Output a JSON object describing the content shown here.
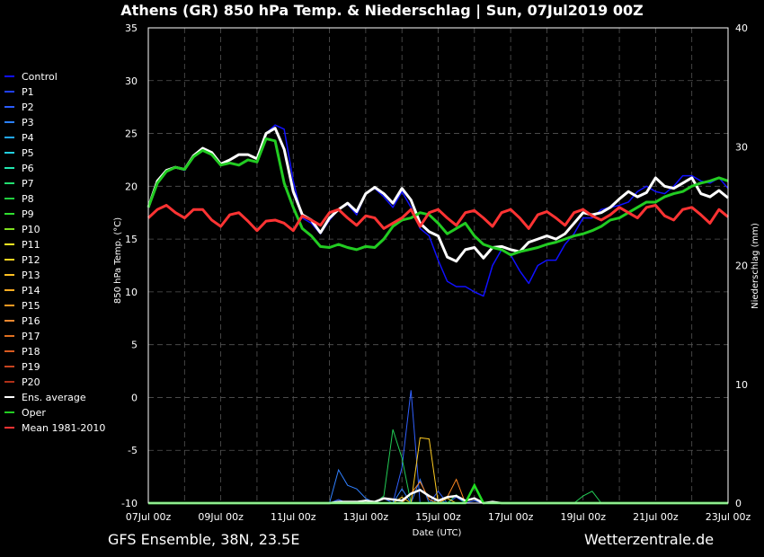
{
  "chart_data": {
    "type": "line",
    "title": "Athens  (GR)  850 hPa Temp. & Niederschlag | Sun, 07Jul2019 00Z",
    "xlabel": "Date (UTC)",
    "ylabel": "850 hPa Temp. (°C)",
    "y2label": "Niederschlag (mm)",
    "ylim": [
      -10,
      35
    ],
    "y2lim": [
      0,
      40
    ],
    "yticks": [
      "35",
      "30",
      "25",
      "20",
      "15",
      "10",
      "5",
      "0",
      "-5",
      "-10"
    ],
    "y2ticks": [
      "40",
      "30",
      "20",
      "10",
      "0"
    ],
    "xticks": [
      "07Jul 00z",
      "09Jul 00z",
      "11Jul 00z",
      "13Jul 00z",
      "15Jul 00z",
      "17Jul 00z",
      "19Jul 00z",
      "21Jul 00z",
      "23Jul 00z"
    ],
    "grid": true,
    "legend_position": "left",
    "x_hours": [
      0,
      6,
      12,
      18,
      24,
      30,
      36,
      42,
      48,
      54,
      60,
      66,
      72,
      78,
      84,
      90,
      96,
      102,
      108,
      114,
      120,
      126,
      132,
      138,
      144,
      150,
      156,
      162,
      168,
      174,
      180,
      186,
      192,
      198,
      204,
      210,
      216,
      222,
      228,
      234,
      240,
      246,
      252,
      258,
      264,
      270,
      276,
      282,
      288,
      294,
      300,
      306,
      312,
      318,
      324,
      330,
      336,
      342,
      348,
      354,
      360,
      366,
      372,
      378,
      384
    ],
    "series": [
      {
        "name": "Control",
        "color": "#1010ff",
        "values": [
          18,
          20.5,
          21.5,
          21.8,
          21.5,
          22.8,
          23.6,
          23.1,
          22.0,
          22.5,
          23.0,
          23.0,
          22.6,
          25.0,
          25.8,
          25.4,
          20.5,
          17.0,
          16.5,
          15.5,
          16.8,
          17.8,
          18.3,
          17.3,
          19.3,
          19.8,
          19.0,
          18.0,
          19.5,
          18.0,
          16.0,
          15.3,
          13.0,
          11.0,
          10.5,
          10.5,
          10.0,
          9.6,
          12.5,
          14.0,
          13.5,
          12.0,
          10.8,
          12.5,
          13.0,
          13.0,
          14.5,
          15.5,
          17.0,
          17.0,
          17.8,
          18.0,
          18.2,
          18.5,
          19.5,
          20.0,
          19.5,
          19.3,
          20.0,
          21.0,
          21.0,
          20.5,
          20.3,
          20.8,
          19.8
        ]
      },
      {
        "name": "Ens. average",
        "color": "#ffffff",
        "values": [
          18,
          20.5,
          21.5,
          21.8,
          21.6,
          22.9,
          23.6,
          23.2,
          22.1,
          22.5,
          23.0,
          23.0,
          22.6,
          25.0,
          25.5,
          23.5,
          19.5,
          17.3,
          16.8,
          15.6,
          17.0,
          17.8,
          18.4,
          17.6,
          19.3,
          19.9,
          19.3,
          18.4,
          19.8,
          18.7,
          16.5,
          15.7,
          15.3,
          13.3,
          12.9,
          14.0,
          14.2,
          13.2,
          14.2,
          14.3,
          14.0,
          13.8,
          14.7,
          15.0,
          15.3,
          15.0,
          15.5,
          16.5,
          17.5,
          17.3,
          17.5,
          18.0,
          18.8,
          19.5,
          19.0,
          19.4,
          20.8,
          20.0,
          19.8,
          20.3,
          20.8,
          19.3,
          19.0,
          19.6,
          18.9
        ]
      },
      {
        "name": "Oper",
        "color": "#22cc22",
        "values": [
          18,
          20.3,
          21.4,
          21.8,
          21.6,
          22.8,
          23.4,
          23.0,
          22.0,
          22.2,
          22.0,
          22.5,
          22.3,
          24.5,
          24.3,
          20.3,
          18.0,
          16.0,
          15.3,
          14.3,
          14.2,
          14.5,
          14.2,
          14.0,
          14.3,
          14.2,
          15.0,
          16.2,
          16.8,
          17.0,
          17.5,
          17.3,
          16.5,
          15.5,
          16.0,
          16.5,
          15.3,
          14.5,
          14.2,
          14.0,
          13.5,
          13.8,
          14.0,
          14.2,
          14.5,
          14.7,
          15.0,
          15.3,
          15.5,
          15.8,
          16.2,
          16.8,
          17.0,
          17.5,
          18.0,
          18.5,
          18.5,
          19.0,
          19.3,
          19.5,
          20.0,
          20.3,
          20.5,
          20.8,
          20.5
        ]
      },
      {
        "name": "Mean 1981-2010",
        "color": "#ff3333",
        "values": [
          17,
          17.8,
          18.2,
          17.5,
          17.0,
          17.8,
          17.8,
          16.8,
          16.2,
          17.3,
          17.5,
          16.7,
          15.8,
          16.7,
          16.8,
          16.5,
          15.8,
          17.2,
          16.8,
          16.3,
          17.5,
          17.8,
          17.0,
          16.3,
          17.2,
          17.0,
          16.0,
          16.5,
          17.0,
          17.8,
          16.2,
          17.5,
          17.8,
          17.0,
          16.3,
          17.5,
          17.7,
          17.0,
          16.2,
          17.5,
          17.8,
          17.0,
          16.0,
          17.3,
          17.6,
          17.0,
          16.3,
          17.5,
          17.8,
          17.2,
          16.8,
          17.3,
          18.0,
          17.5,
          17.0,
          18.0,
          18.2,
          17.2,
          16.8,
          17.8,
          18.0,
          17.3,
          16.5,
          17.8,
          17.1
        ]
      }
    ],
    "precip_series": [
      {
        "name": "P1",
        "color": "#3060ff",
        "values": [
          0,
          0,
          0,
          0,
          0,
          0,
          0,
          0,
          0,
          0,
          0,
          0,
          0,
          0,
          0,
          0,
          0,
          0,
          0,
          0,
          0,
          0.3,
          0,
          0,
          0,
          0,
          0.4,
          0,
          3,
          9.5,
          0,
          0,
          1,
          0,
          0.5,
          0,
          0.2,
          0,
          0,
          0,
          0,
          0,
          0,
          0,
          0,
          0,
          0,
          0,
          0,
          0,
          0,
          0,
          0,
          0,
          0,
          0,
          0,
          0,
          0,
          0,
          0,
          0,
          0,
          0,
          0
        ]
      },
      {
        "name": "P2",
        "color": "#3080ff",
        "values": [
          0,
          0,
          0,
          0,
          0,
          0,
          0,
          0,
          0,
          0,
          0,
          0,
          0,
          0,
          0,
          0,
          0,
          0,
          0,
          0,
          0,
          2.8,
          1.5,
          1.2,
          0.4,
          0,
          0,
          0,
          1.2,
          0,
          2,
          0,
          0.3,
          0,
          0,
          0,
          0,
          0,
          0,
          0,
          0,
          0,
          0,
          0,
          0,
          0,
          0,
          0,
          0,
          0,
          0,
          0,
          0,
          0,
          0,
          0,
          0,
          0,
          0,
          0,
          0,
          0,
          0,
          0,
          0
        ]
      },
      {
        "name": "P8",
        "color": "#22cc55",
        "values": [
          0,
          0,
          0,
          0,
          0,
          0,
          0,
          0,
          0,
          0,
          0,
          0,
          0,
          0,
          0,
          0,
          0,
          0,
          0,
          0,
          0,
          0,
          0,
          0,
          0,
          0,
          0.6,
          6.2,
          3.8,
          0,
          0,
          0,
          0,
          0,
          0.7,
          0,
          1.5,
          0,
          0,
          0,
          0,
          0,
          0,
          0,
          0,
          0,
          0,
          0,
          0.6,
          1,
          0,
          0,
          0,
          0,
          0,
          0,
          0,
          0,
          0,
          0,
          0,
          0,
          0,
          0,
          0
        ]
      },
      {
        "name": "P13",
        "color": "#ffcc22",
        "values": [
          0,
          0,
          0,
          0,
          0,
          0,
          0,
          0,
          0,
          0,
          0,
          0,
          0,
          0,
          0,
          0,
          0,
          0,
          0,
          0,
          0,
          0,
          0,
          0,
          0,
          0,
          0,
          0,
          0.5,
          0,
          5.5,
          5.4,
          0,
          0.4,
          0,
          0,
          0,
          0,
          0,
          0,
          0,
          0,
          0,
          0,
          0,
          0,
          0,
          0,
          0,
          0,
          0,
          0,
          0,
          0,
          0,
          0,
          0,
          0,
          0,
          0,
          0,
          0,
          0,
          0,
          0
        ]
      },
      {
        "name": "P16",
        "color": "#ff8822",
        "values": [
          0,
          0,
          0,
          0,
          0,
          0,
          0,
          0,
          0,
          0,
          0,
          0,
          0,
          0,
          0,
          0,
          0,
          0,
          0,
          0,
          0,
          0,
          0,
          0,
          0,
          0,
          0,
          0,
          0,
          0.8,
          1.8,
          0.3,
          0,
          0.5,
          2,
          0,
          0,
          0,
          0,
          0,
          0,
          0,
          0,
          0,
          0,
          0,
          0,
          0,
          0,
          0,
          0,
          0,
          0,
          0,
          0,
          0,
          0,
          0,
          0,
          0,
          0,
          0,
          0,
          0,
          0
        ]
      },
      {
        "name": "Ens. average",
        "color": "#ffffff",
        "values": [
          0,
          0,
          0,
          0,
          0,
          0,
          0,
          0,
          0,
          0,
          0,
          0,
          0,
          0,
          0,
          0,
          0,
          0,
          0,
          0,
          0,
          0.1,
          0.1,
          0.1,
          0.2,
          0.1,
          0.4,
          0.3,
          0.2,
          0.8,
          1.1,
          0.6,
          0.2,
          0.5,
          0.6,
          0.2,
          0.4,
          0,
          0.1,
          0,
          0,
          0,
          0,
          0,
          0,
          0,
          0,
          0,
          0,
          0,
          0,
          0,
          0,
          0,
          0,
          0,
          0,
          0,
          0,
          0,
          0,
          0,
          0,
          0,
          0
        ]
      },
      {
        "name": "Oper",
        "color": "#22dd22",
        "values": [
          0,
          0,
          0,
          0,
          0,
          0,
          0,
          0,
          0,
          0,
          0,
          0,
          0,
          0,
          0,
          0,
          0,
          0,
          0,
          0,
          0,
          0,
          0,
          0,
          0,
          0,
          0,
          0,
          0,
          0,
          0,
          0,
          0,
          0,
          0,
          0,
          1.5,
          0,
          0,
          0,
          0,
          0,
          0,
          0,
          0,
          0,
          0,
          0,
          0,
          0,
          0,
          0,
          0,
          0,
          0,
          0,
          0,
          0,
          0,
          0,
          0,
          0,
          0,
          0,
          0
        ]
      }
    ]
  },
  "legend": [
    {
      "label": "Control",
      "color": "#1010ff"
    },
    {
      "label": "P1",
      "color": "#2040ff"
    },
    {
      "label": "P2",
      "color": "#2a5cff"
    },
    {
      "label": "P3",
      "color": "#2a80ff"
    },
    {
      "label": "P4",
      "color": "#22a8ff"
    },
    {
      "label": "P5",
      "color": "#22d0e0"
    },
    {
      "label": "P6",
      "color": "#22e8b0"
    },
    {
      "label": "P7",
      "color": "#22e070"
    },
    {
      "label": "P8",
      "color": "#22d040"
    },
    {
      "label": "P9",
      "color": "#30e030"
    },
    {
      "label": "P10",
      "color": "#80e020"
    },
    {
      "label": "P11",
      "color": "#ffee22"
    },
    {
      "label": "P12",
      "color": "#ffd422"
    },
    {
      "label": "P13",
      "color": "#ffc022"
    },
    {
      "label": "P14",
      "color": "#ffac22"
    },
    {
      "label": "P15",
      "color": "#ff9a22"
    },
    {
      "label": "P16",
      "color": "#f08830"
    },
    {
      "label": "P17",
      "color": "#e07020"
    },
    {
      "label": "P18",
      "color": "#d85a20"
    },
    {
      "label": "P19",
      "color": "#c84420"
    },
    {
      "label": "P20",
      "color": "#b03018"
    },
    {
      "label": "Ens. average",
      "color": "#ffffff"
    },
    {
      "label": "Oper",
      "color": "#22cc22"
    },
    {
      "label": "Mean 1981-2010",
      "color": "#ff3333"
    }
  ],
  "footer": {
    "left": "GFS Ensemble, 38N, 23.5E",
    "right": "Wetterzentrale.de"
  }
}
